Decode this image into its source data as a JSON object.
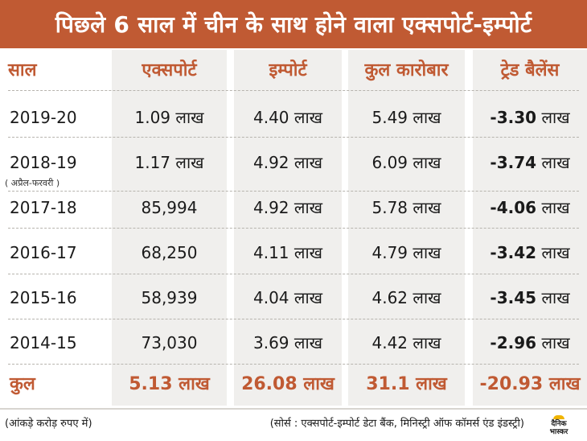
{
  "title": "पिछले 6 साल में चीन के साथ होने वाला एक्सपोर्ट-इम्पोर्ट",
  "headers": {
    "year": "साल",
    "export": "एक्सपोर्ट",
    "import": "इम्पोर्ट",
    "total_trade": "कुल कारोबार",
    "trade_balance": "ट्रेड बैलेंस"
  },
  "rows": [
    {
      "year": "2019-20",
      "export": "1.09 लाख",
      "import": "4.40 लाख",
      "total": "5.49 लाख",
      "balance_sign": "-",
      "balance_value": "3.30",
      "balance_unit": " लाख"
    },
    {
      "year": "2018-19",
      "export": "1.17 लाख",
      "import": "4.92 लाख",
      "total": "6.09 लाख",
      "balance_sign": "-",
      "balance_value": "3.74",
      "balance_unit": " लाख"
    },
    {
      "year": "2017-18",
      "export": "85,994",
      "import": "4.92 लाख",
      "total": "5.78 लाख",
      "balance_sign": "-",
      "balance_value": "4.06",
      "balance_unit": " लाख"
    },
    {
      "year": "2016-17",
      "export": "68,250",
      "import": "4.11 लाख",
      "total": "4.79 लाख",
      "balance_sign": "-",
      "balance_value": "3.42",
      "balance_unit": " लाख"
    },
    {
      "year": "2015-16",
      "export": "58,939",
      "import": "4.04 लाख",
      "total": "4.62 लाख",
      "balance_sign": "-",
      "balance_value": "3.45",
      "balance_unit": " लाख"
    },
    {
      "year": "2014-15",
      "export": "73,030",
      "import": "3.69 लाख",
      "total": "4.42 लाख",
      "balance_sign": "-",
      "balance_value": "2.96",
      "balance_unit": " लाख"
    }
  ],
  "row_note": "( अप्रैल-फरवरी )",
  "total_row": {
    "label": "कुल",
    "export": "5.13 लाख",
    "import": "26.08 लाख",
    "total": "31.1 लाख",
    "balance": "-20.93 लाख"
  },
  "footer": {
    "unit_note": "(आंकड़े करोड़ रुपए में)",
    "source": "(सोर्स : एक्सपोर्ट-इम्पोर्ट डेटा बैंक, मिनिस्ट्री ऑफ कॉमर्स एंड इंडस्ट्री)"
  },
  "logo_text": [
    "दैनिक",
    "भास्कर"
  ],
  "colors": {
    "accent": "#c05a33",
    "column_bg": "#f0efed"
  }
}
